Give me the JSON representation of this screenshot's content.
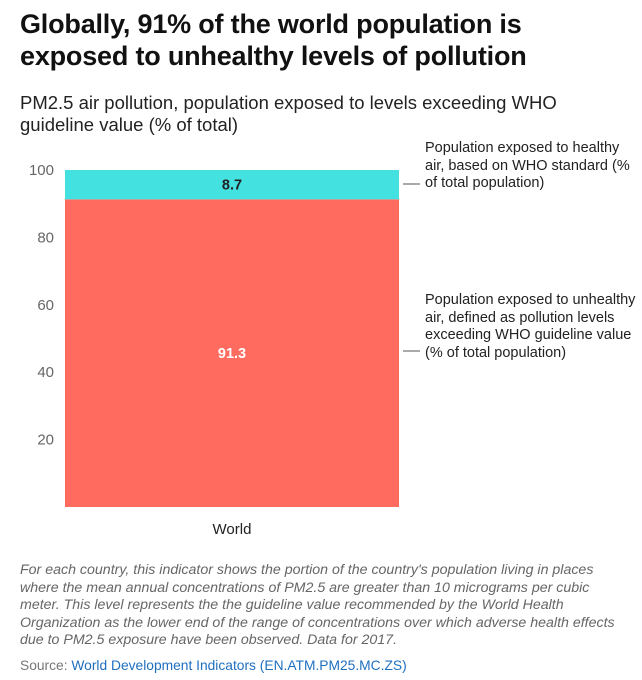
{
  "title": "Globally, 91% of the world population is exposed to unhealthy levels of pollution",
  "subtitle": "PM2.5 air pollution, population exposed to levels exceeding WHO guideline value (% of total)",
  "chart_data": {
    "type": "bar",
    "stacked": true,
    "categories": [
      "World"
    ],
    "series": [
      {
        "name": "Population exposed to unhealthy air, defined as pollution levels exceeding WHO guideline value (% of total population)",
        "values": [
          91.3
        ],
        "color": "#ff6b5e",
        "label_color": "#ffffff"
      },
      {
        "name": "Population exposed to healthy air, based on WHO standard (% of total population)",
        "values": [
          8.7
        ],
        "color": "#44e1e1",
        "label_color": "#222222"
      }
    ],
    "yticks": [
      20,
      40,
      60,
      80,
      100
    ],
    "ylim": [
      0,
      100
    ],
    "xlabel": "",
    "ylabel": "",
    "legend_position": "right"
  },
  "footnote": "For each country, this indicator shows the portion of the country's population living in places where the mean annual concentrations of PM2.5 are greater than 10 micrograms per cubic meter. This level represents the the guideline value recommended by the World Health Organization as the lower end of the range of concentrations over which adverse health effects due to PM2.5 exposure have been observed. Data for 2017.",
  "source": {
    "label": "Source: ",
    "link_text": "World Development Indicators (EN.ATM.PM25.MC.ZS)"
  },
  "colors": {
    "unhealthy": "#ff6b5e",
    "healthy": "#44e1e1",
    "link": "#1f6fbf"
  }
}
